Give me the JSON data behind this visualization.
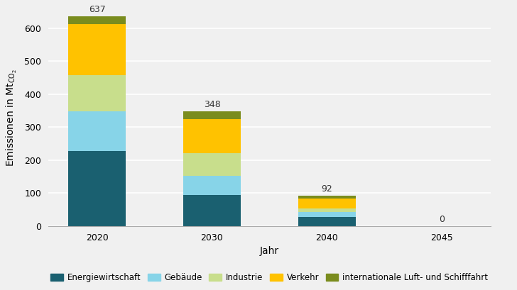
{
  "categories": [
    "2020",
    "2030",
    "2040",
    "2045"
  ],
  "segments": {
    "Energiewirtschaft": [
      228,
      95,
      28,
      0
    ],
    "Gebäude": [
      120,
      58,
      15,
      0
    ],
    "Industrie": [
      110,
      68,
      10,
      0
    ],
    "Verkehr": [
      155,
      104,
      30,
      0
    ],
    "internationale Luft- und Schifffahrt": [
      24,
      23,
      9,
      0
    ]
  },
  "totals": [
    637,
    348,
    92,
    0
  ],
  "colors": {
    "Energiewirtschaft": "#1a6070",
    "Gebäude": "#87d4e8",
    "Industrie": "#c8de8c",
    "Verkehr": "#ffc200",
    "internationale Luft- und Schifffahrt": "#7a8c1e"
  },
  "xlabel": "Jahr",
  "ylim": [
    0,
    660
  ],
  "yticks": [
    0,
    100,
    200,
    300,
    400,
    500,
    600
  ],
  "bar_width": 0.5,
  "background_color": "#f0f0f0",
  "grid_color": "#ffffff",
  "label_fontsize": 9,
  "axis_fontsize": 9,
  "legend_fontsize": 8.5
}
